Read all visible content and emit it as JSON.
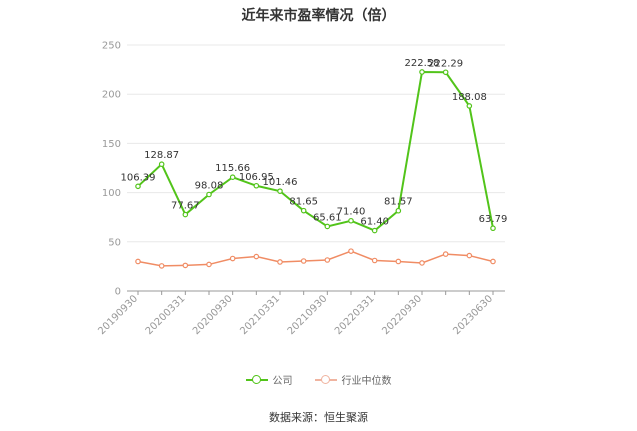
{
  "chart_data": {
    "type": "line",
    "title": "近年来市盈率情况（倍）",
    "ylim": [
      0,
      250
    ],
    "yticks": [
      0,
      50,
      100,
      150,
      200,
      250
    ],
    "grid": true,
    "legend_position": "bottom",
    "x_tick_labels": [
      "20190930",
      "20200331",
      "20200930",
      "20210331",
      "20210930",
      "20220331",
      "20220930",
      "20230630"
    ],
    "x": [
      "20190930",
      "20191231",
      "20200331",
      "20200630",
      "20200930",
      "20201231",
      "20210331",
      "20210630",
      "20210930",
      "20211231",
      "20220331",
      "20220630",
      "20220930",
      "20221231",
      "20230331",
      "20230630"
    ],
    "series": [
      {
        "name": "公司",
        "color": "#52c41a",
        "values": [
          106.39,
          128.87,
          77.67,
          98.08,
          115.66,
          106.95,
          101.46,
          81.65,
          65.61,
          71.4,
          61.4,
          81.57,
          222.58,
          222.29,
          188.08,
          63.79
        ],
        "labels": [
          "106.39",
          "128.87",
          "77.67",
          "98.08",
          "115.66",
          "106.95",
          "101.46",
          "81.65",
          "65.61",
          "71.40",
          "61.40",
          "81.57",
          "222.58",
          "222.29",
          "188.08",
          "63.79"
        ]
      },
      {
        "name": "行业中位数",
        "color": "#f08c64",
        "values": [
          30,
          25.5,
          26,
          27,
          33,
          35,
          29.5,
          30.5,
          31.5,
          40.5,
          31,
          30,
          28.5,
          37.5,
          36,
          30
        ]
      }
    ]
  },
  "legend": {
    "company": "公司",
    "industry": "行业中位数"
  },
  "source": "数据来源：恒生聚源"
}
